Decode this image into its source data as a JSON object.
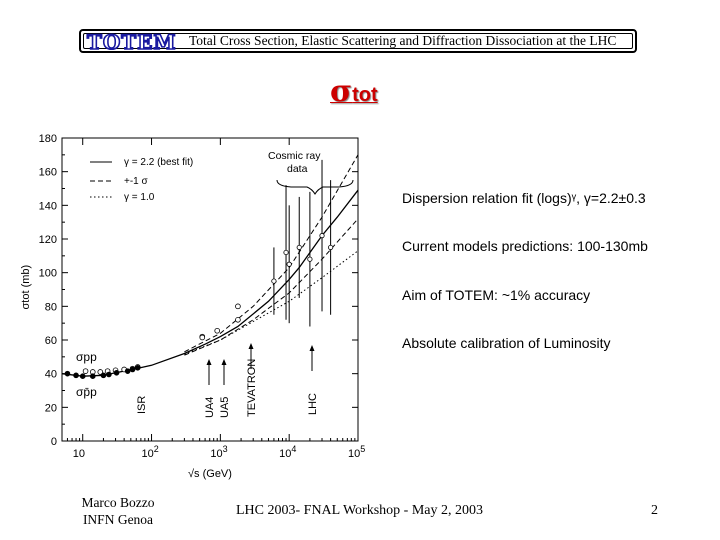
{
  "header": {
    "logo_text": "TOTEM",
    "title": "Total Cross Section, Elastic Scattering and Diffraction Dissociation at the LHC"
  },
  "slide_title": {
    "symbol": "σ",
    "subscript": "tot",
    "color": "#cc0000"
  },
  "bullets": [
    "Dispersion relation fit (logs)ᵞ, γ=2.2±0.3",
    "Current models predictions: 100-130mb",
    "Aim of TOTEM: ~1% accuracy",
    "Absolute calibration of Luminosity"
  ],
  "footer": {
    "author_line1": "Marco Bozzo",
    "author_line2": "INFN Genoa",
    "event": "LHC 2003- FNAL Workshop - May 2, 2003",
    "page": "2"
  },
  "chart_data": {
    "type": "line",
    "xlabel": "√s (GeV)",
    "ylabel": "σtot (mb)",
    "x_scale": "log",
    "xlim": [
      5,
      100000
    ],
    "ylim": [
      0,
      180
    ],
    "x_ticks": [
      "10",
      "10²",
      "10³",
      "10⁴",
      "10⁵"
    ],
    "y_ticks": [
      0,
      20,
      40,
      60,
      80,
      100,
      120,
      140,
      160,
      180
    ],
    "legend": [
      "γ = 2.2 (best fit)",
      "+-1 σ",
      "γ = 1.0"
    ],
    "legend_position": "top-left",
    "annotations": {
      "cosmic": [
        "Cosmic ray",
        "data"
      ],
      "pp": "σpp",
      "pbarp": "σp̄p",
      "machines": [
        "ISR",
        "UA4",
        "UA5",
        "TEVATRON",
        "LHC"
      ]
    },
    "series": [
      {
        "name": "γ = 2.2 (best fit)",
        "style": "solid",
        "x": [
          5,
          10,
          20,
          30,
          60,
          100,
          300,
          600,
          1000,
          1800,
          5000,
          10000,
          14000,
          30000,
          50000,
          100000
        ],
        "values": [
          40,
          38.5,
          39,
          40.5,
          43,
          45,
          52,
          57.5,
          62,
          68,
          83,
          96,
          103,
          122,
          133,
          149
        ]
      },
      {
        "name": "+-1 σ upper",
        "style": "dashed",
        "x": [
          300,
          1000,
          3000,
          10000,
          30000,
          100000
        ],
        "values": [
          53,
          64,
          80,
          103,
          133,
          170
        ]
      },
      {
        "name": "+-1 σ lower",
        "style": "dashed",
        "x": [
          300,
          1000,
          3000,
          10000,
          30000,
          100000
        ],
        "values": [
          51,
          60,
          72,
          88,
          108,
          132
        ]
      },
      {
        "name": "γ = 1.0",
        "style": "dotted",
        "x": [
          300,
          1000,
          3000,
          10000,
          30000,
          100000
        ],
        "values": [
          51.5,
          60,
          71,
          83,
          97,
          113
        ]
      },
      {
        "name": "σp̄p",
        "style": "markers",
        "x": [
          11,
          14,
          18,
          23,
          30,
          40,
          53,
          63,
          546,
          546,
          900,
          1800,
          1800
        ],
        "values": [
          41.5,
          41,
          41,
          41.5,
          42,
          42.5,
          43,
          44,
          62,
          61.5,
          65.5,
          72,
          80
        ]
      },
      {
        "name": "σpp",
        "style": "markers",
        "x": [
          6,
          8,
          10,
          14,
          20,
          24,
          31,
          45,
          53,
          63
        ],
        "values": [
          40,
          39,
          38.5,
          38.5,
          39,
          39.5,
          40.5,
          41.5,
          42.5,
          43.5
        ]
      },
      {
        "name": "Cosmic ray data",
        "style": "errorbars",
        "x": [
          6000,
          9000,
          10000,
          14000,
          20000,
          30000,
          40000
        ],
        "values": [
          95,
          112,
          105,
          115,
          108,
          122,
          115
        ],
        "errors": [
          20,
          40,
          35,
          30,
          40,
          45,
          40
        ]
      }
    ]
  }
}
